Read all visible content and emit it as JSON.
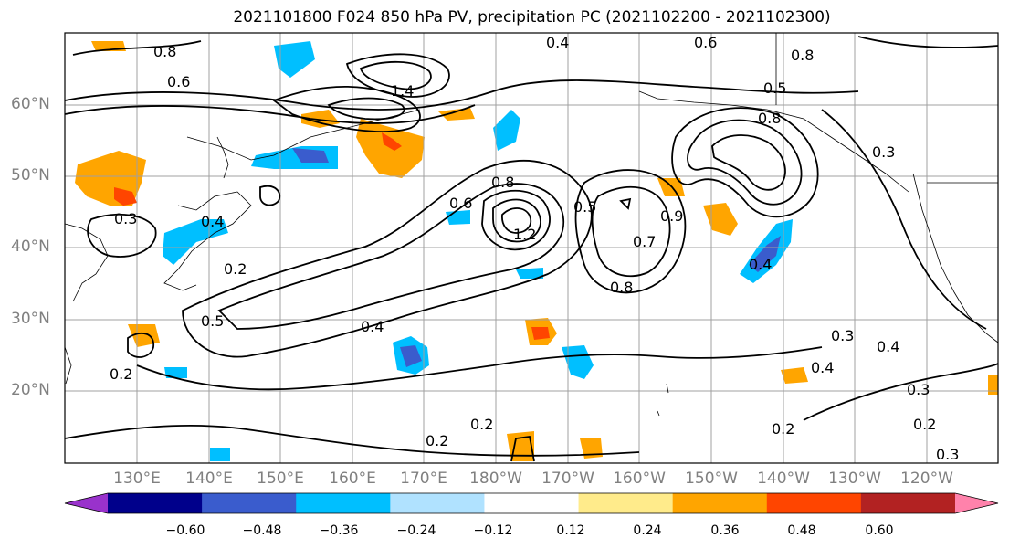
{
  "title": "2021101800 F024 850 hPa PV, precipitation PC (2021102200 - 2021102300)",
  "lat_labels": [
    "60°N",
    "50°N",
    "40°N",
    "30°N",
    "20°N"
  ],
  "lon_labels": [
    "130°E",
    "140°E",
    "150°E",
    "160°E",
    "170°E",
    "180°W",
    "170°W",
    "160°W",
    "150°W",
    "140°W",
    "130°W",
    "120°W"
  ],
  "colorbar": {
    "colors": [
      "#9932cc",
      "#00008b",
      "#3a5ccd",
      "#00bfff",
      "#b0e2ff",
      "#ffffff",
      "#ffeb8b",
      "#ffa500",
      "#ff4500",
      "#b22222",
      "#ff82ab"
    ],
    "ticks": [
      "−0.60",
      "−0.48",
      "−0.36",
      "−0.24",
      "−0.12",
      "0.12",
      "0.24",
      "0.36",
      "0.48",
      "0.60"
    ]
  },
  "contour_labels": [
    "0.8",
    "0.6",
    "0.7",
    "0.4",
    "0.5",
    "1.4",
    "0.3",
    "0.2",
    "0.9",
    "1.2"
  ],
  "colors": {
    "pos_weak": "#ffeb8b",
    "pos_mid": "#ffa500",
    "pos_strong": "#ff4500",
    "neg_weak": "#b0e2ff",
    "neg_mid": "#00bfff",
    "neg_strong": "#3a5ccd"
  }
}
